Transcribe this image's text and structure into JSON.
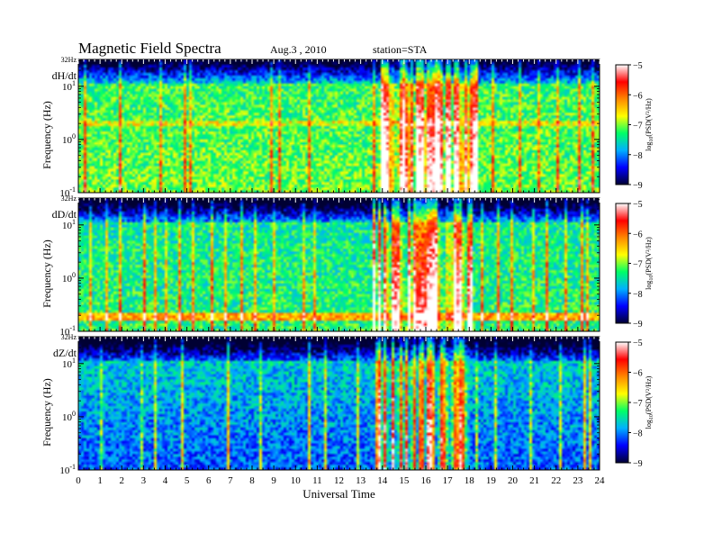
{
  "header": {
    "title": "Magnetic  Field  Spectra",
    "date": "Aug.3  , 2010",
    "station": "station=STA"
  },
  "chart_data": {
    "type": "heatmap",
    "xlabel": "Universal Time",
    "x_ticks": [
      0,
      1,
      2,
      3,
      4,
      5,
      6,
      7,
      8,
      9,
      10,
      11,
      12,
      13,
      14,
      15,
      16,
      17,
      18,
      19,
      20,
      21,
      22,
      23,
      24
    ],
    "xlim": [
      0,
      24
    ],
    "y_scale": "log",
    "ylim_hz": [
      0.1,
      32
    ],
    "y_top_label": "32Hz",
    "y_tick_labels": [
      {
        "base": "10",
        "exp": "1",
        "value": 10
      },
      {
        "base": "10",
        "exp": "0",
        "value": 1
      },
      {
        "base": "10",
        "exp": "-1",
        "value": 0.1
      }
    ],
    "ylabel": "Frequency  (Hz)",
    "colorbar": {
      "label_prefix": "log",
      "label_sub": "10",
      "label_rest": "(PSD(V²/Hz)",
      "min": -9,
      "max": -5,
      "ticks": [
        -5,
        -6,
        -7,
        -8,
        -9
      ],
      "colors": [
        "#000033",
        "#0000ff",
        "#00b0ff",
        "#00ff66",
        "#ffff00",
        "#ff8800",
        "#ff0000",
        "#ffffff"
      ]
    },
    "panels": [
      {
        "component": "dH/dt",
        "background_level": -7.2,
        "disturbed_ranges_ut": [
          [
            13.8,
            18.4
          ]
        ],
        "broadband_events_ut": [
          0.3,
          1.9,
          3.8,
          4.9,
          5.2,
          8.9,
          9.3,
          10.6,
          13.6,
          14.2,
          15.1,
          15.9,
          16.4,
          17.5,
          18.2,
          19.1,
          20.3,
          21.2,
          22.1,
          23.1,
          23.7
        ]
      },
      {
        "component": "dD/dt",
        "background_level": -7.4,
        "disturbed_ranges_ut": [
          [
            13.5,
            18.2
          ]
        ],
        "broadband_events_ut": [
          0.6,
          1.3,
          1.9,
          3.0,
          3.6,
          4.0,
          4.7,
          5.3,
          6.2,
          6.8,
          7.5,
          8.2,
          9.0,
          9.7,
          10.4,
          10.9,
          13.9,
          14.7,
          15.5,
          16.1,
          17.2,
          18.6,
          19.3,
          20.0,
          20.9,
          21.6,
          22.4,
          23.2,
          23.5
        ]
      },
      {
        "component": "dZ/dt",
        "background_level": -7.8,
        "disturbed_ranges_ut": [
          [
            13.7,
            18.0
          ]
        ],
        "broadband_events_ut": [
          1.1,
          2.9,
          3.6,
          4.8,
          5.1,
          6.9,
          8.4,
          9.2,
          10.6,
          11.4,
          12.9,
          13.9,
          14.5,
          15.6,
          16.3,
          17.1,
          18.4,
          19.2,
          20.8,
          22.2,
          23.3,
          23.6
        ]
      }
    ]
  }
}
